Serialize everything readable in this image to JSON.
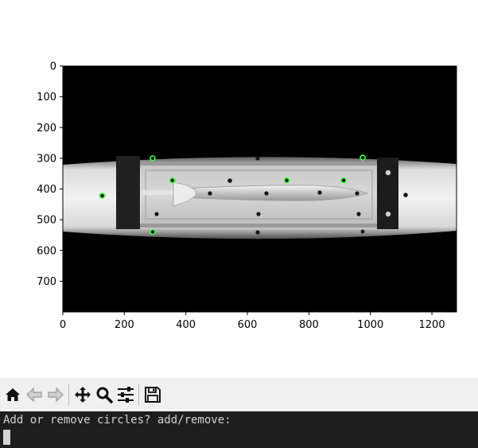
{
  "plot": {
    "x_ticks": [
      "0",
      "200",
      "400",
      "600",
      "800",
      "1000",
      "1200"
    ],
    "y_ticks": [
      "0",
      "100",
      "200",
      "300",
      "400",
      "500",
      "600",
      "700"
    ],
    "image_description_colors": {
      "background": "#000000",
      "marker_outline": "#3aff3a"
    },
    "circles": [
      {
        "x": 292,
        "y": 300
      },
      {
        "x": 975,
        "y": 298
      },
      {
        "x": 356,
        "y": 372
      },
      {
        "x": 728,
        "y": 372
      },
      {
        "x": 913,
        "y": 372
      },
      {
        "x": 128,
        "y": 422
      },
      {
        "x": 292,
        "y": 540
      }
    ]
  },
  "toolbar": {
    "buttons": [
      {
        "name": "home-button",
        "icon": "home-icon"
      },
      {
        "name": "back-button",
        "icon": "arrow-left-icon"
      },
      {
        "name": "forward-button",
        "icon": "arrow-right-icon"
      },
      {
        "name": "pan-button",
        "icon": "move-icon"
      },
      {
        "name": "zoom-button",
        "icon": "magnifier-icon"
      },
      {
        "name": "configure-subplots-button",
        "icon": "sliders-icon"
      },
      {
        "name": "save-button",
        "icon": "floppy-icon"
      }
    ]
  },
  "terminal": {
    "prompt": "Add or remove circles? add/remove:",
    "input_value": ""
  }
}
